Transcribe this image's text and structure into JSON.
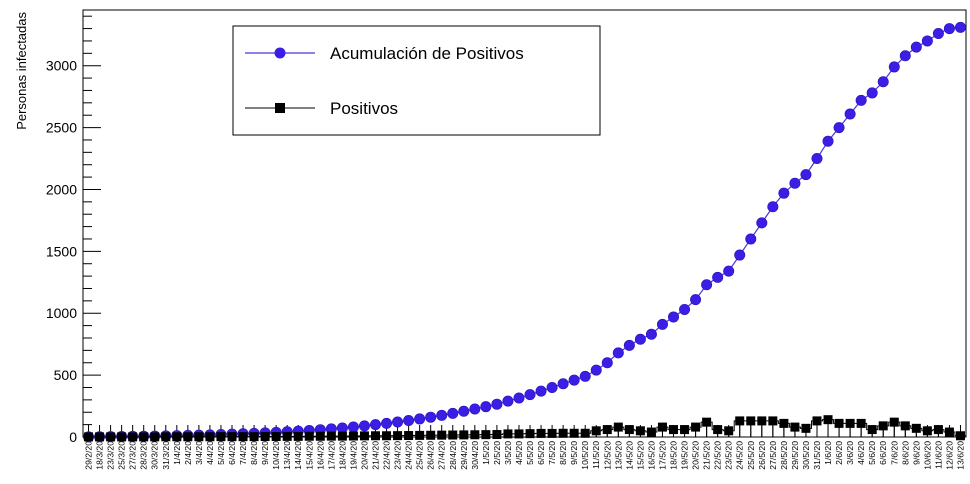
{
  "chart_data": {
    "type": "line",
    "title": "",
    "xlabel": "",
    "ylabel": "Personas infectadas",
    "ylim": [
      0,
      3450
    ],
    "y_ticks": [
      0,
      500,
      1000,
      1500,
      2000,
      2500,
      3000
    ],
    "grid": false,
    "legend_position": "top-center",
    "categories": [
      "29/2/20",
      "18/3/20",
      "23/3/20",
      "25/3/20",
      "27/3/20",
      "28/3/20",
      "30/3/20",
      "31/3/20",
      "1/4/20",
      "2/4/20",
      "3/4/20",
      "4/4/20",
      "5/4/20",
      "6/4/20",
      "7/4/20",
      "8/4/20",
      "9/4/20",
      "10/4/20",
      "13/4/20",
      "14/4/20",
      "15/4/20",
      "16/4/20",
      "17/4/20",
      "18/4/20",
      "19/4/20",
      "20/4/20",
      "21/4/20",
      "22/4/20",
      "23/4/20",
      "24/4/20",
      "25/4/20",
      "26/4/20",
      "27/4/20",
      "28/4/20",
      "29/4/20",
      "30/4/20",
      "1/5/20",
      "2/5/20",
      "3/5/20",
      "4/5/20",
      "5/5/20",
      "6/5/20",
      "7/5/20",
      "8/5/20",
      "9/5/20",
      "10/5/20",
      "11/5/20",
      "12/5/20",
      "13/5/20",
      "14/5/20",
      "15/5/20",
      "16/5/20",
      "17/5/20",
      "18/5/20",
      "19/5/20",
      "20/5/20",
      "21/5/20",
      "22/5/20",
      "23/5/20",
      "24/5/20",
      "25/5/20",
      "26/5/20",
      "27/5/20",
      "28/5/20",
      "29/5/20",
      "30/5/20",
      "31/5/20",
      "1/6/20",
      "2/6/20",
      "3/6/20",
      "4/6/20",
      "5/6/20",
      "6/6/20",
      "7/6/20",
      "8/6/20",
      "9/6/20",
      "10/6/20",
      "11/6/20",
      "12/6/20",
      "13/6/20"
    ],
    "series": [
      {
        "name": "Acumulación de Positivos",
        "color": "#3b1ee6",
        "marker": "circle",
        "values": [
          1,
          2,
          3,
          4,
          5,
          6,
          7,
          9,
          11,
          13,
          15,
          17,
          20,
          23,
          26,
          29,
          33,
          37,
          42,
          47,
          53,
          59,
          66,
          73,
          81,
          90,
          100,
          110,
          121,
          133,
          146,
          160,
          175,
          191,
          208,
          226,
          245,
          265,
          290,
          315,
          342,
          371,
          400,
          430,
          460,
          490,
          540,
          600,
          680,
          740,
          790,
          830,
          910,
          970,
          1030,
          1110,
          1230,
          1290,
          1340,
          1470,
          1600,
          1730,
          1860,
          1970,
          2050,
          2120,
          2250,
          2390,
          2500,
          2610,
          2720,
          2780,
          2870,
          2990,
          3080,
          3150,
          3200,
          3260,
          3300,
          3310
        ]
      },
      {
        "name": "Positivos",
        "color": "#000000",
        "marker": "square",
        "values": [
          1,
          1,
          1,
          1,
          1,
          1,
          1,
          2,
          2,
          2,
          2,
          2,
          3,
          3,
          3,
          3,
          4,
          4,
          5,
          5,
          6,
          6,
          7,
          7,
          8,
          9,
          10,
          10,
          11,
          12,
          13,
          14,
          15,
          16,
          17,
          18,
          19,
          20,
          25,
          25,
          27,
          29,
          29,
          30,
          30,
          30,
          50,
          60,
          80,
          60,
          50,
          40,
          80,
          60,
          60,
          80,
          120,
          60,
          50,
          130,
          130,
          130,
          130,
          110,
          80,
          70,
          130,
          140,
          110,
          110,
          110,
          60,
          90,
          120,
          90,
          70,
          50,
          60,
          40,
          10
        ]
      }
    ]
  }
}
